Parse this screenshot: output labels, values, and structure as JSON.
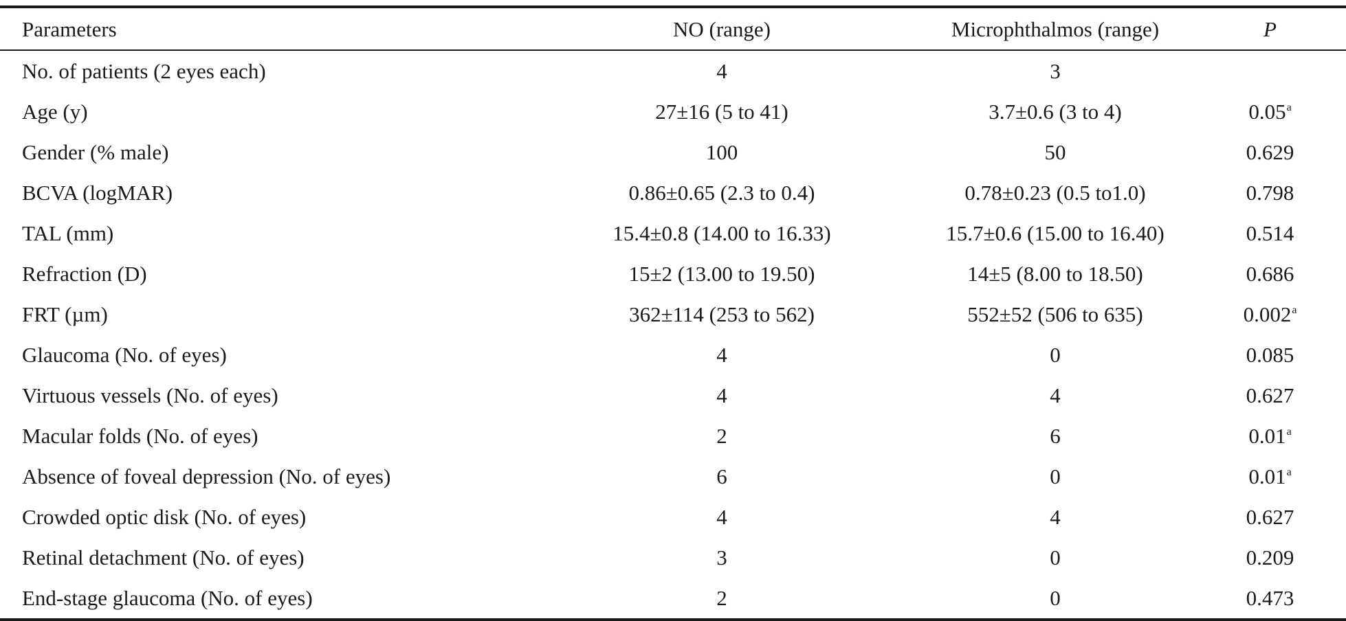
{
  "table": {
    "headers": {
      "parameters": "Parameters",
      "no": "NO (range)",
      "micro": "Microphthalmos (range)",
      "p": "P"
    },
    "rows": [
      {
        "parameter": "No. of patients (2 eyes each)",
        "no": "4",
        "micro": "3",
        "p": "",
        "sup": ""
      },
      {
        "parameter": "Age (y)",
        "no": "27±16 (5 to 41)",
        "micro": "3.7±0.6 (3 to 4)",
        "p": "0.05",
        "sup": "a"
      },
      {
        "parameter": "Gender (% male)",
        "no": "100",
        "micro": "50",
        "p": "0.629",
        "sup": ""
      },
      {
        "parameter": "BCVA (logMAR)",
        "no": "0.86±0.65 (2.3 to 0.4)",
        "micro": "0.78±0.23 (0.5 to1.0)",
        "p": "0.798",
        "sup": ""
      },
      {
        "parameter": "TAL (mm)",
        "no": "15.4±0.8 (14.00 to 16.33)",
        "micro": "15.7±0.6 (15.00 to 16.40)",
        "p": "0.514",
        "sup": ""
      },
      {
        "parameter": "Refraction (D)",
        "no": "15±2 (13.00 to 19.50)",
        "micro": "14±5 (8.00 to 18.50)",
        "p": "0.686",
        "sup": ""
      },
      {
        "parameter": "FRT (µm)",
        "no": "362±114 (253 to 562)",
        "micro": "552±52 (506 to 635)",
        "p": "0.002",
        "sup": "a"
      },
      {
        "parameter": "Glaucoma (No. of eyes)",
        "no": "4",
        "micro": "0",
        "p": "0.085",
        "sup": ""
      },
      {
        "parameter": "Virtuous vessels (No. of eyes)",
        "no": "4",
        "micro": "4",
        "p": "0.627",
        "sup": ""
      },
      {
        "parameter": "Macular folds (No. of eyes)",
        "no": "2",
        "micro": "6",
        "p": "0.01",
        "sup": "a"
      },
      {
        "parameter": "Absence of foveal depression (No. of eyes)",
        "no": "6",
        "micro": "0",
        "p": "0.01",
        "sup": "a"
      },
      {
        "parameter": "Crowded optic disk (No. of eyes)",
        "no": "4",
        "micro": "4",
        "p": "0.627",
        "sup": ""
      },
      {
        "parameter": "Retinal detachment (No. of eyes)",
        "no": "3",
        "micro": "0",
        "p": "0.209",
        "sup": ""
      },
      {
        "parameter": "End-stage glaucoma (No. of eyes)",
        "no": "2",
        "micro": "0",
        "p": "0.473",
        "sup": ""
      }
    ]
  }
}
